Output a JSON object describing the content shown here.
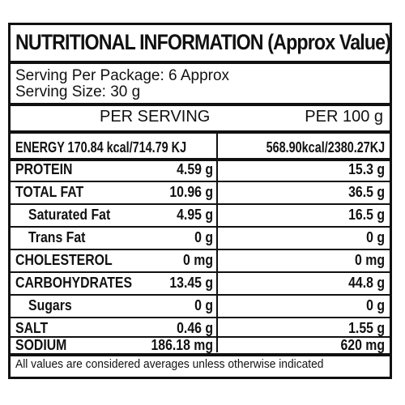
{
  "title": "NUTRITIONAL INFORMATION (Approx Value)",
  "serving_per_package": "Serving Per Package: 6 Approx",
  "serving_size": "Serving Size: 30 g",
  "columns": {
    "per_serving": "PER SERVING",
    "per_100g": "PER 100 g"
  },
  "rows": [
    {
      "label": "ENERGY 170.84 kcal/714.79 KJ",
      "per_serving": "",
      "per_100g": "568.90kcal/2380.27KJ"
    },
    {
      "label": "PROTEIN",
      "per_serving": "4.59 g",
      "per_100g": "15.3 g"
    },
    {
      "label": "TOTAL FAT",
      "per_serving": "10.96 g",
      "per_100g": "36.5 g"
    },
    {
      "label": "Saturated Fat",
      "per_serving": "4.95 g",
      "per_100g": "16.5 g"
    },
    {
      "label": "Trans Fat",
      "per_serving": "0 g",
      "per_100g": "0 g"
    },
    {
      "label": "CHOLESTEROL",
      "per_serving": "0 mg",
      "per_100g": "0 mg"
    },
    {
      "label": "CARBOHYDRATES",
      "per_serving": "13.45 g",
      "per_100g": "44.8 g"
    },
    {
      "label": "Sugars",
      "per_serving": "0 g",
      "per_100g": "0 g"
    },
    {
      "label": "SALT",
      "per_serving": "0.46 g",
      "per_100g": "1.55 g"
    },
    {
      "label": "SODIUM",
      "per_serving": "186.18 mg",
      "per_100g": "620 mg"
    }
  ],
  "footnote": "All values are considered averages unless otherwise indicated"
}
